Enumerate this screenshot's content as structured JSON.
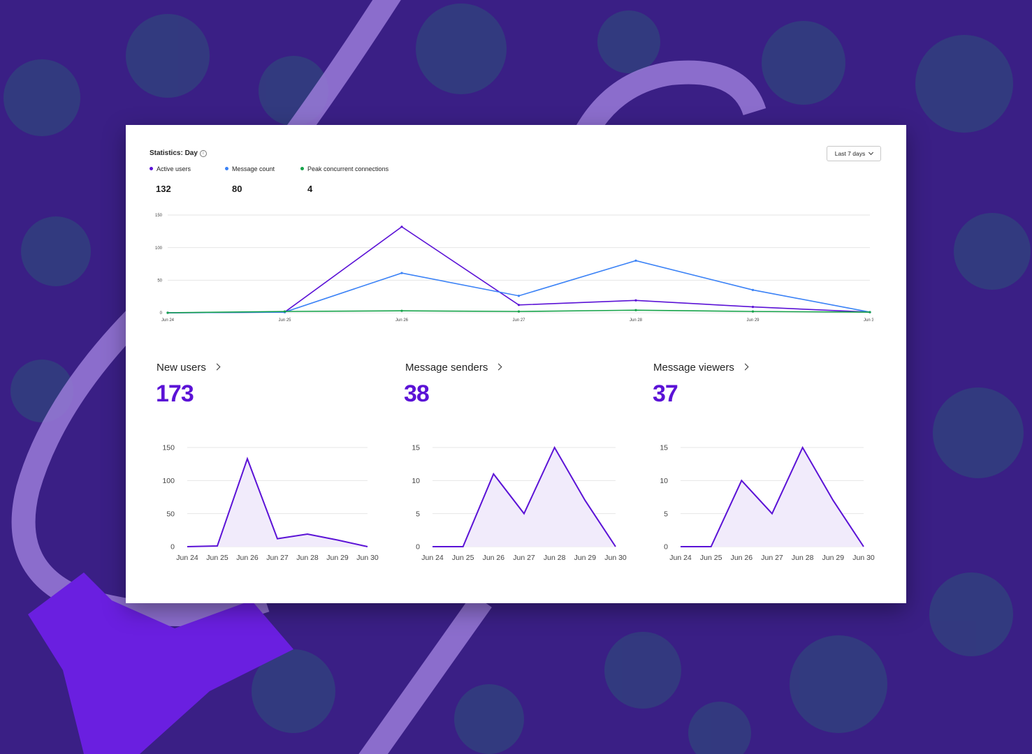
{
  "header": {
    "title": "Statistics: Day",
    "info_icon": "info-icon",
    "range_label": "Last 7 days"
  },
  "legend": [
    {
      "label": "Active users",
      "value": "132",
      "color": "#5b12d6"
    },
    {
      "label": "Message count",
      "value": "80",
      "color": "#3b82f6"
    },
    {
      "label": "Peak concurrent connections",
      "value": "4",
      "color": "#16a34a"
    }
  ],
  "cards": [
    {
      "title": "New users",
      "value": "173"
    },
    {
      "title": "Message senders",
      "value": "38"
    },
    {
      "title": "Message viewers",
      "value": "37"
    }
  ],
  "chart_data": [
    {
      "type": "line",
      "categories": [
        "Jun 24",
        "Jun 25",
        "Jun 26",
        "Jun 27",
        "Jun 28",
        "Jun 29",
        "Jun 30"
      ],
      "yticks": [
        0,
        50,
        100,
        150
      ],
      "ylim": [
        0,
        150
      ],
      "series": [
        {
          "name": "Active users",
          "color": "#5b12d6",
          "values": [
            0,
            1,
            132,
            12,
            19,
            9,
            1
          ]
        },
        {
          "name": "Message count",
          "color": "#3b82f6",
          "values": [
            0,
            1,
            61,
            26,
            80,
            35,
            1
          ]
        },
        {
          "name": "Peak concurrent connections",
          "color": "#16a34a",
          "values": [
            0,
            2,
            3,
            2,
            4,
            2,
            1
          ]
        }
      ]
    },
    {
      "type": "area",
      "categories": [
        "Jun 24",
        "Jun 25",
        "Jun 26",
        "Jun 27",
        "Jun 28",
        "Jun 29",
        "Jun 30"
      ],
      "yticks": [
        0,
        50,
        100,
        150
      ],
      "ylim": [
        0,
        150
      ],
      "series": [
        {
          "values": [
            0,
            1,
            133,
            12,
            19,
            10,
            0
          ]
        }
      ]
    },
    {
      "type": "area",
      "categories": [
        "Jun 24",
        "Jun 25",
        "Jun 26",
        "Jun 27",
        "Jun 28",
        "Jun 29",
        "Jun 30"
      ],
      "yticks": [
        0,
        5,
        10,
        15
      ],
      "ylim": [
        0,
        15
      ],
      "series": [
        {
          "values": [
            0,
            0,
            11,
            5,
            15,
            7,
            0
          ]
        }
      ]
    },
    {
      "type": "area",
      "categories": [
        "Jun 24",
        "Jun 25",
        "Jun 26",
        "Jun 27",
        "Jun 28",
        "Jun 29",
        "Jun 30"
      ],
      "yticks": [
        0,
        5,
        10,
        15
      ],
      "ylim": [
        0,
        15
      ],
      "series": [
        {
          "values": [
            0,
            0,
            10,
            5,
            15,
            7,
            0
          ]
        }
      ]
    }
  ]
}
